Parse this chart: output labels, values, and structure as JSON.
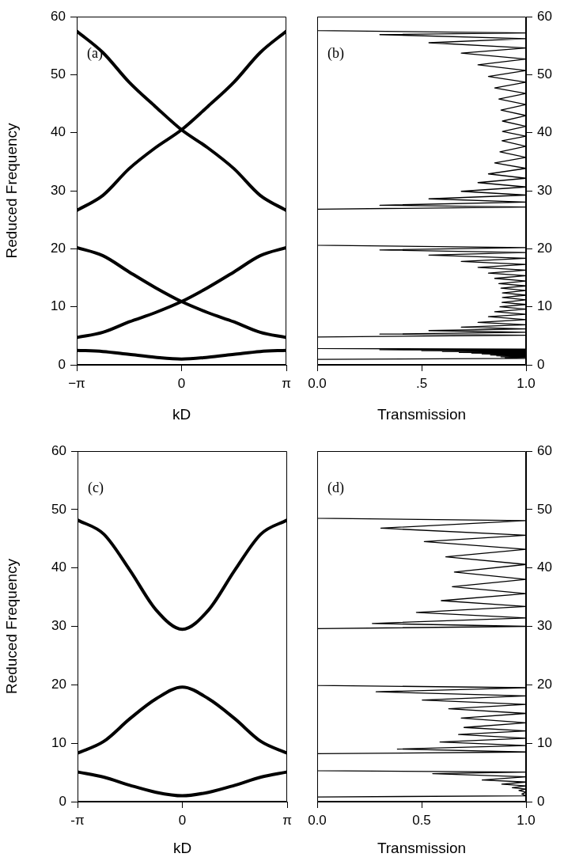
{
  "chart_data": [
    {
      "type": "line",
      "xlabel": "kD",
      "ylabel": "Reduced Frequency",
      "annotations": [
        "(a)"
      ],
      "xlim": [
        -3.1416,
        3.1416
      ],
      "xticks": [
        {
          "value": -3.1416,
          "label": "−π"
        },
        0,
        {
          "value": 3.1416,
          "label": "π"
        }
      ],
      "ylim": [
        0,
        60
      ],
      "yticks": [
        0,
        10,
        20,
        30,
        40,
        50,
        60
      ],
      "x": [
        -3.1416,
        -2.3562,
        -1.5708,
        -0.7854,
        0,
        0.7854,
        1.5708,
        2.3562,
        3.1416
      ],
      "series": [
        {
          "color": "#000000",
          "values": [
            2.5,
            2.3,
            1.8,
            1.3,
            1.0,
            1.3,
            1.8,
            2.3,
            2.5
          ]
        },
        {
          "color": "#000000",
          "values": [
            4.7,
            5.6,
            7.4,
            9.0,
            10.9,
            13.3,
            16.0,
            18.8,
            20.2
          ]
        },
        {
          "color": "#000000",
          "values": [
            20.2,
            18.8,
            16.0,
            13.3,
            10.9,
            9.0,
            7.4,
            5.6,
            4.7
          ]
        },
        {
          "color": "#000000",
          "values": [
            26.6,
            29.2,
            33.8,
            37.4,
            40.5,
            44.5,
            48.7,
            53.8,
            57.5
          ]
        },
        {
          "color": "#000000",
          "values": [
            57.5,
            53.8,
            48.7,
            44.5,
            40.5,
            37.4,
            33.8,
            29.2,
            26.6
          ]
        }
      ]
    },
    {
      "type": "line",
      "xlabel": "Transmission",
      "annotations": [
        "(b)"
      ],
      "xlim": [
        0,
        1
      ],
      "xticks": [
        {
          "value": 0,
          "label": "0.0"
        },
        {
          "value": 0.5,
          "label": ".5"
        },
        {
          "value": 1,
          "label": "1.0"
        }
      ],
      "y2lim": [
        0,
        60
      ],
      "y2ticks": [
        0,
        10,
        20,
        30,
        40,
        50,
        60
      ],
      "series": [
        {
          "color": "#000000",
          "axis": "y2",
          "x": [
            0,
            0,
            1,
            0.3,
            1,
            0.535,
            1,
            0.69,
            1,
            0.77,
            1,
            0.82,
            1,
            0.85,
            1,
            0.87,
            1,
            0.88,
            1,
            0.887,
            1,
            0.887,
            1,
            0.885,
            1,
            0.875,
            1,
            0.85,
            1,
            0.82,
            1,
            0.77,
            1,
            0.69,
            1,
            0.535,
            1,
            0.3,
            1,
            0,
            0,
            1,
            0.3,
            1,
            0.535,
            1,
            0.69,
            1,
            0.77,
            1,
            0.82,
            1,
            0.85,
            1,
            0.87,
            1,
            0.88,
            1,
            0.887,
            1,
            0.887,
            1,
            0.885,
            1,
            0.875,
            1,
            0.85,
            1,
            0.82,
            1,
            0.77,
            1,
            0.69,
            1,
            0.535,
            1,
            0.3,
            1,
            0,
            0,
            1,
            0.3,
            1,
            0.5,
            1,
            0.6,
            1,
            0.68,
            1,
            0.74,
            1,
            0.79,
            1,
            0.83,
            1,
            0.86,
            1,
            0.88,
            1,
            0.9,
            1,
            0,
            0
          ],
          "values": [
            60,
            57.6,
            57.2,
            56.9,
            56.2,
            55.5,
            54.6,
            53.7,
            52.7,
            51.7,
            50.7,
            49.7,
            48.7,
            47.7,
            46.75,
            45.8,
            44.85,
            43.9,
            42.95,
            42.0,
            41.1,
            40.2,
            39.4,
            38.6,
            37.65,
            36.7,
            35.75,
            34.8,
            33.85,
            32.9,
            32.15,
            31.4,
            30.65,
            29.9,
            29.25,
            28.6,
            28.05,
            27.5,
            27.2,
            26.8,
            20.6,
            20.2,
            19.8,
            19.35,
            18.9,
            18.35,
            17.8,
            17.3,
            16.8,
            16.3,
            15.8,
            15.35,
            14.9,
            14.45,
            14.0,
            13.6,
            13.2,
            12.8,
            12.4,
            12.0,
            11.6,
            11.2,
            10.75,
            10.4,
            10.0,
            9.6,
            9.15,
            8.7,
            8.3,
            7.8,
            7.3,
            6.9,
            6.5,
            6.2,
            5.9,
            5.6,
            5.3,
            5.1,
            4.8,
            2.8,
            2.7,
            2.6,
            2.52,
            2.45,
            2.37,
            2.3,
            2.22,
            2.15,
            2.07,
            2.0,
            1.92,
            1.85,
            1.77,
            1.7,
            1.62,
            1.55,
            1.47,
            1.4,
            1.32,
            1.25,
            1.1,
            0.95,
            0
          ]
        }
      ]
    },
    {
      "type": "line",
      "xlabel": "kD",
      "ylabel": "Reduced Frequency",
      "annotations": [
        "(c)"
      ],
      "xlim": [
        -3.1416,
        3.1416
      ],
      "xticks": [
        {
          "value": -3.1416,
          "label": "-π"
        },
        0,
        {
          "value": 3.1416,
          "label": "π"
        }
      ],
      "ylim": [
        0,
        60
      ],
      "yticks": [
        0,
        10,
        20,
        30,
        40,
        50,
        60
      ],
      "x": [
        -3.1416,
        -2.3562,
        -1.5708,
        -0.7854,
        0,
        0.7854,
        1.5708,
        2.3562,
        3.1416
      ],
      "series": [
        {
          "color": "#000000",
          "values": [
            5.1,
            4.2,
            2.8,
            1.6,
            1.0,
            1.6,
            2.8,
            4.2,
            5.1
          ]
        },
        {
          "color": "#000000",
          "values": [
            8.3,
            10.3,
            14.2,
            17.6,
            19.6,
            17.6,
            14.2,
            10.3,
            8.3
          ]
        },
        {
          "color": "#000000",
          "values": [
            48.2,
            45.8,
            39.6,
            32.8,
            29.5,
            32.8,
            39.6,
            45.8,
            48.2
          ]
        }
      ]
    },
    {
      "type": "line",
      "xlabel": "Transmission",
      "annotations": [
        "(d)"
      ],
      "xlim": [
        0,
        1
      ],
      "xticks": [
        {
          "value": 0,
          "label": "0.0"
        },
        {
          "value": 0.5,
          "label": "0.5"
        },
        {
          "value": 1,
          "label": "1.0"
        }
      ],
      "y2lim": [
        0,
        60
      ],
      "y2ticks": [
        0,
        10,
        20,
        30,
        40,
        50,
        60
      ],
      "series": [
        {
          "color": "#000000",
          "axis": "y2",
          "x": [
            0,
            0,
            1,
            0.305,
            1,
            0.513,
            1,
            0.616,
            1,
            0.657,
            1,
            0.647,
            1,
            0.594,
            1,
            0.475,
            1,
            0.264,
            1,
            0,
            0,
            1,
            0.282,
            1,
            0.503,
            1,
            0.63,
            1,
            0.69,
            1,
            0.703,
            1,
            0.677,
            1,
            0.588,
            1,
            0.384,
            1,
            0,
            0,
            1,
            0.553,
            1,
            0.79,
            1,
            0.884,
            1,
            0.934,
            1,
            0.966,
            1,
            0.98,
            1,
            0,
            0
          ],
          "values": [
            60,
            48.5,
            48.1,
            46.8,
            45.6,
            44.5,
            43.2,
            41.9,
            40.6,
            39.3,
            38.05,
            36.8,
            35.6,
            34.4,
            33.4,
            32.4,
            31.45,
            30.5,
            30.0,
            29.6,
            19.9,
            19.5,
            18.8,
            18.1,
            17.4,
            16.65,
            15.9,
            15.1,
            14.3,
            13.5,
            12.7,
            12.1,
            11.5,
            10.85,
            10.2,
            9.6,
            9.0,
            8.5,
            8.2,
            5.3,
            5.05,
            4.8,
            4.25,
            3.7,
            3.35,
            3.0,
            2.7,
            2.4,
            2.15,
            1.9,
            1.6,
            1.3,
            1.0,
            0.8,
            0
          ]
        }
      ]
    }
  ]
}
